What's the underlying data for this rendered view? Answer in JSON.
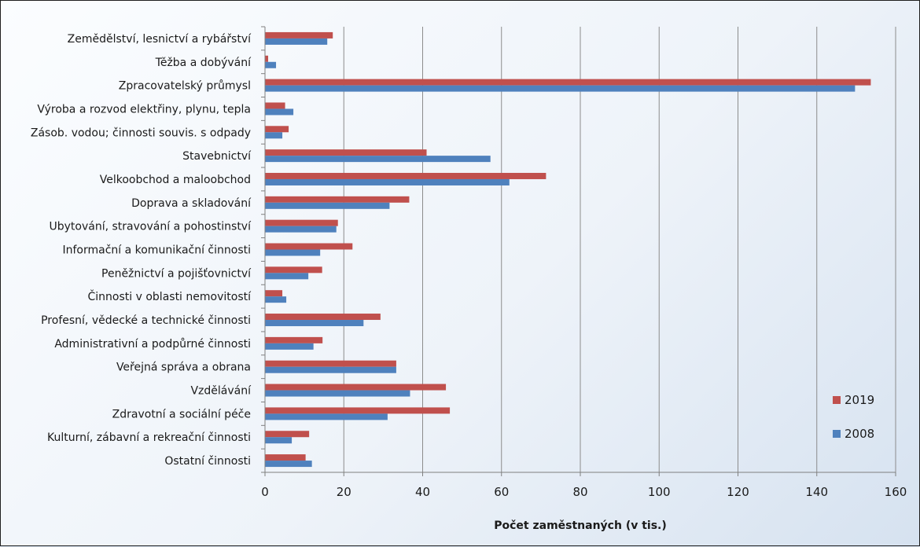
{
  "chart_data": {
    "type": "bar",
    "orientation": "horizontal",
    "categories": [
      "Zemědělství, lesnictví a rybářství",
      "Těžba a dobývání",
      "Zpracovatelský průmysl",
      "Výroba a rozvod elektřiny, plynu, tepla",
      "Zásob. vodou; činnosti souvis. s odpady",
      "Stavebnictví",
      "Velkoobchod a maloobchod",
      "Doprava a skladování",
      "Ubytování, stravování a pohostinství",
      "Informační a komunikační činnosti",
      "Peněžnictví a pojišťovnictví",
      "Činnosti v oblasti nemovitostí",
      "Profesní, vědecké a technické činnosti",
      "Administrativní a podpůrné činnosti",
      "Veřejná správa a obrana",
      "Vzdělávání",
      "Zdravotní a sociální péče",
      "Kulturní, zábavní a rekreační činnosti",
      "Ostatní činnosti"
    ],
    "series": [
      {
        "name": "2019",
        "color": "#c0504d",
        "values": [
          17.2,
          0.8,
          153.7,
          5.1,
          6.0,
          41.0,
          71.3,
          36.6,
          18.5,
          22.2,
          14.5,
          4.4,
          29.3,
          14.6,
          33.3,
          45.9,
          46.9,
          11.2,
          10.3
        ]
      },
      {
        "name": "2008",
        "color": "#4f81bd",
        "values": [
          15.8,
          2.8,
          149.7,
          7.2,
          4.4,
          57.2,
          62.0,
          31.6,
          18.1,
          14.0,
          11.0,
          5.4,
          25.0,
          12.3,
          33.3,
          36.8,
          31.1,
          6.8,
          11.9
        ]
      }
    ],
    "xlim": [
      0,
      160
    ],
    "xticks": [
      "0",
      "20",
      "40",
      "60",
      "80",
      "100",
      "120",
      "140",
      "160"
    ],
    "xlabel": "Počet zaměstnaných  (v tis.)",
    "ylabel": "",
    "grid": "vertical",
    "legend_position": "right"
  }
}
